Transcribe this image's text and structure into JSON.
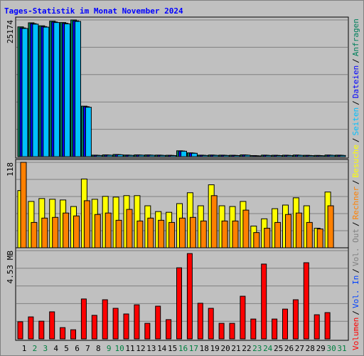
{
  "chart_data": [
    {
      "type": "bar",
      "title": "Tages-Statistik im Monat November 2024",
      "ylim": [
        0,
        25174
      ],
      "yticks": [
        25174
      ],
      "series": [
        {
          "name": "Anfragen",
          "color": "#00805c",
          "values": [
            23900,
            24650,
            24100,
            24950,
            24700,
            25174,
            9300,
            280,
            330,
            400,
            300,
            330,
            320,
            290,
            260,
            1080,
            700,
            280,
            300,
            280,
            260,
            330,
            200,
            280,
            260,
            270,
            300,
            250,
            230,
            300,
            280
          ]
        },
        {
          "name": "Dateien",
          "color": "#0000ff",
          "values": [
            23700,
            24500,
            23950,
            24800,
            24550,
            25000,
            9200,
            250,
            300,
            370,
            270,
            300,
            290,
            260,
            230,
            1040,
            660,
            250,
            270,
            250,
            230,
            300,
            170,
            250,
            230,
            240,
            270,
            220,
            200,
            270,
            250
          ]
        },
        {
          "name": "Seiten",
          "color": "#00c0ff",
          "values": [
            23600,
            24400,
            23850,
            24700,
            24450,
            24900,
            9100,
            220,
            270,
            340,
            240,
            270,
            260,
            230,
            200,
            1000,
            620,
            220,
            240,
            220,
            200,
            270,
            140,
            220,
            200,
            210,
            240,
            190,
            170,
            240,
            220
          ]
        }
      ]
    },
    {
      "type": "bar",
      "ylim": [
        0,
        118
      ],
      "yticks": [
        118
      ],
      "series": [
        {
          "name": "Besuche",
          "color": "#ffff00",
          "values": [
            79,
            64,
            68,
            67,
            66,
            57,
            95,
            67,
            71,
            70,
            72,
            72,
            58,
            50,
            49,
            61,
            76,
            58,
            87,
            58,
            57,
            64,
            30,
            40,
            54,
            59,
            69,
            58,
            27,
            77,
            0
          ]
        },
        {
          "name": "Rechner",
          "color": "#ff8000",
          "values": [
            118,
            35,
            41,
            42,
            48,
            44,
            65,
            46,
            48,
            38,
            53,
            37,
            41,
            38,
            35,
            41,
            42,
            37,
            72,
            37,
            37,
            52,
            21,
            27,
            35,
            46,
            48,
            35,
            26,
            58,
            0
          ]
        }
      ]
    },
    {
      "type": "bar",
      "ylim": [
        0,
        4.53
      ],
      "yticks": [
        {
          "value": 4.53,
          "label": "4.53 MB"
        }
      ],
      "series": [
        {
          "name": "Volumen",
          "color": "#ff0000",
          "values": [
            0.88,
            1.13,
            0.91,
            1.39,
            0.58,
            0.47,
            2.05,
            1.21,
            2.01,
            1.57,
            1.28,
            1.75,
            0.8,
            1.68,
            0.99,
            3.65,
            4.38,
            1.83,
            1.57,
            0.8,
            0.8,
            2.19,
            1.02,
            3.84,
            1.02,
            1.53,
            2.01,
            3.91,
            1.24,
            1.35,
            0
          ]
        }
      ],
      "legend_only": [
        {
          "name": "Vol. In",
          "color": "#0040ff"
        },
        {
          "name": "Vol. Out",
          "color": "#808080"
        }
      ],
      "categories": [
        "1",
        "2",
        "3",
        "4",
        "5",
        "6",
        "7",
        "8",
        "9",
        "10",
        "11",
        "12",
        "13",
        "14",
        "15",
        "16",
        "17",
        "18",
        "19",
        "20",
        "21",
        "22",
        "23",
        "24",
        "25",
        "26",
        "27",
        "28",
        "29",
        "30",
        "31"
      ],
      "category_colors": [
        "#000000",
        "#008040",
        "#008040",
        "#000000",
        "#000000",
        "#000000",
        "#000000",
        "#000000",
        "#008040",
        "#008040",
        "#000000",
        "#000000",
        "#000000",
        "#000000",
        "#000000",
        "#008040",
        "#008040",
        "#000000",
        "#000000",
        "#000000",
        "#000000",
        "#000000",
        "#008040",
        "#008040",
        "#000000",
        "#000000",
        "#000000",
        "#000000",
        "#000000",
        "#008040",
        "#008040"
      ]
    }
  ],
  "legend_separator": "/"
}
